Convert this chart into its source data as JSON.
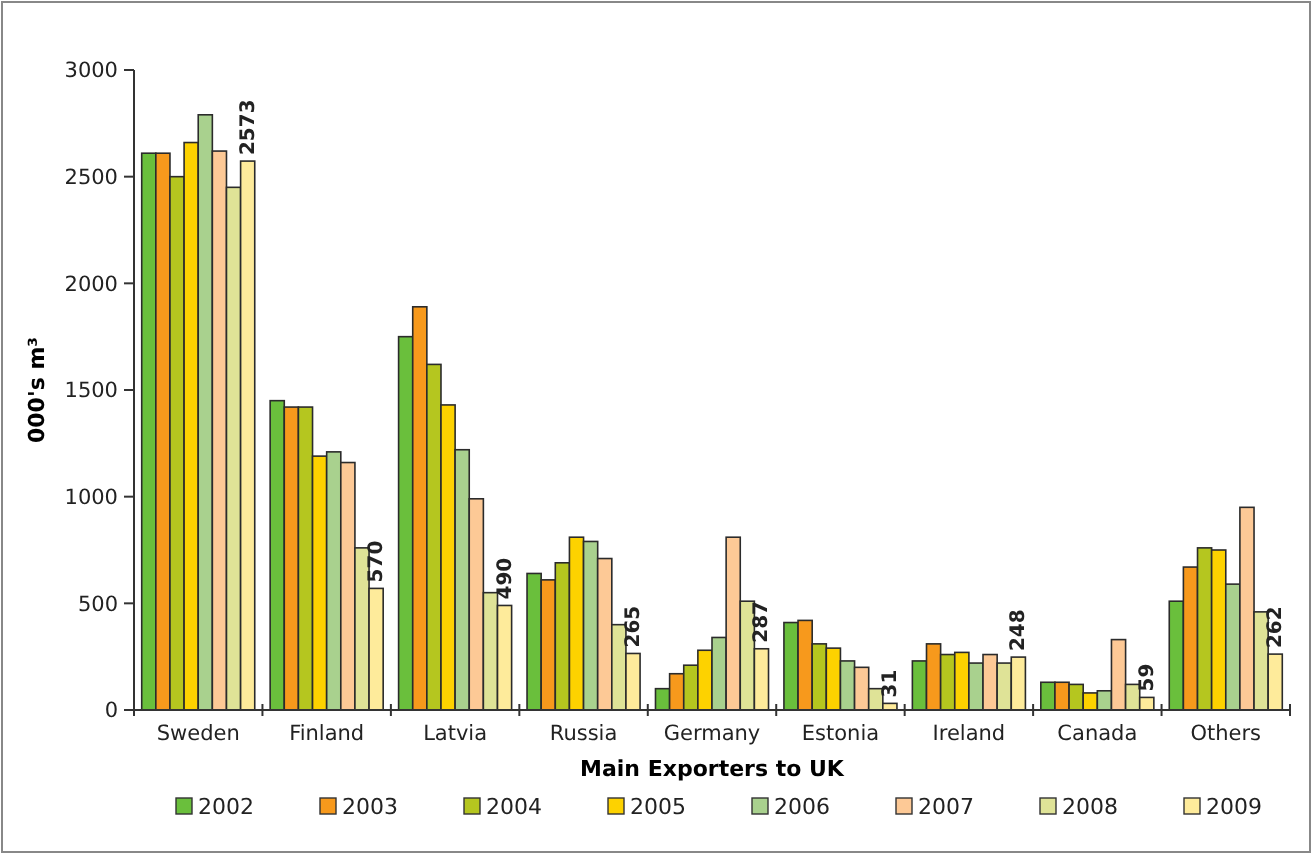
{
  "chart_data": {
    "type": "bar",
    "xlabel": "Main Exporters to UK",
    "ylabel": "000's m³",
    "categories": [
      "Sweden",
      "Finland",
      "Latvia",
      "Russia",
      "Germany",
      "Estonia",
      "Ireland",
      "Canada",
      "Others"
    ],
    "series": [
      {
        "name": "2002",
        "color": "#6abf3c",
        "values": [
          2610,
          1450,
          1750,
          640,
          100,
          410,
          230,
          130,
          510
        ]
      },
      {
        "name": "2003",
        "color": "#f7991c",
        "values": [
          2610,
          1420,
          1890,
          610,
          170,
          420,
          310,
          130,
          670
        ]
      },
      {
        "name": "2004",
        "color": "#b5c61f",
        "values": [
          2500,
          1420,
          1620,
          690,
          210,
          310,
          260,
          120,
          760
        ]
      },
      {
        "name": "2005",
        "color": "#fdd200",
        "values": [
          2660,
          1190,
          1430,
          810,
          280,
          290,
          270,
          80,
          750
        ]
      },
      {
        "name": "2006",
        "color": "#a9d18e",
        "values": [
          2790,
          1210,
          1220,
          790,
          340,
          230,
          220,
          90,
          590
        ]
      },
      {
        "name": "2007",
        "color": "#fdc996",
        "values": [
          2620,
          1160,
          990,
          710,
          810,
          200,
          260,
          330,
          950
        ]
      },
      {
        "name": "2008",
        "color": "#dfe397",
        "values": [
          2450,
          760,
          550,
          400,
          510,
          100,
          220,
          120,
          460
        ]
      },
      {
        "name": "2009",
        "color": "#feeb9b",
        "values": [
          2573,
          570,
          490,
          265,
          287,
          31,
          248,
          59,
          262
        ],
        "value_labels": [
          "2573",
          "570",
          "490",
          "265",
          "287",
          "31",
          "248",
          "59",
          "262"
        ]
      }
    ],
    "ylim": [
      0,
      3000
    ],
    "yticks": [
      0,
      500,
      1000,
      1500,
      2000,
      2500,
      3000
    ],
    "legend": "bottom"
  }
}
